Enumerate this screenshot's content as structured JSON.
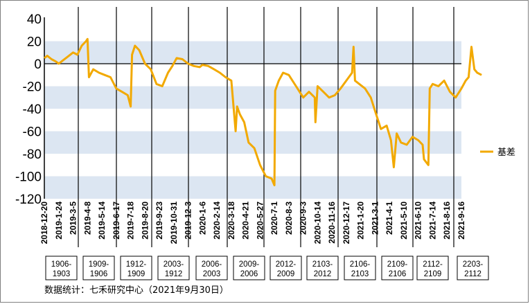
{
  "chart_data": {
    "type": "line",
    "title": "",
    "xlabel": "",
    "ylabel": "",
    "ylim": [
      -120,
      40
    ],
    "yticks": [
      "40",
      "20",
      "0",
      "-20",
      "-40",
      "-60",
      "-80",
      "-100",
      "-120"
    ],
    "grid_bands": true,
    "legend_position": "right",
    "x_tick_labels": [
      "2018-12-20",
      "2019-1-24",
      "2019-3-5",
      "2019-4-8",
      "2019-5-14",
      "2019-6-17",
      "2019-7-18",
      "2019-8-20",
      "2019-9-23",
      "2019-10-31",
      "2019-12-3",
      "2020-1-6",
      "2020-2-14",
      "2020-3-18",
      "2020-4-21",
      "2020-5-27",
      "2020-7-1",
      "2020-8-3",
      "2020-9-3",
      "2020-10-14",
      "2020-11-16",
      "2020-12-17",
      "2021-1-20",
      "2021-3-1",
      "2021-4-1",
      "2021-5-10",
      "2021-6-10",
      "2021-7-14",
      "2021-8-16",
      "2021-9-16"
    ],
    "contracts": [
      {
        "label": "1906-\n1903"
      },
      {
        "label": "1909-\n1906"
      },
      {
        "label": "1912-\n1909"
      },
      {
        "label": "2003-\n1912"
      },
      {
        "label": "2006-\n2003"
      },
      {
        "label": "2009-\n2006"
      },
      {
        "label": "2012-\n2009"
      },
      {
        "label": "2103-\n2012"
      },
      {
        "label": "2106-\n2103"
      },
      {
        "label": "2109-\n2106"
      },
      {
        "label": "2112-\n2109"
      },
      {
        "label": "2203-\n2112"
      }
    ],
    "series": [
      {
        "name": "基差",
        "color": "#f2a900",
        "x_index": [
          0,
          0.2,
          0.5,
          0.8,
          1,
          1.3,
          1.6,
          2,
          2.3,
          2.6,
          2.9,
          3,
          3.1,
          3.4,
          3.8,
          4.2,
          4.6,
          5,
          5.4,
          5.8,
          6,
          6.1,
          6.3,
          6.6,
          7,
          7.4,
          7.8,
          8.2,
          8.6,
          8.9,
          9.2,
          9.6,
          10,
          10.4,
          10.8,
          11,
          11.4,
          11.8,
          12.2,
          12.6,
          13,
          13.3,
          13.4,
          13.6,
          13.9,
          14.2,
          14.6,
          15,
          15.4,
          15.8,
          16,
          16.05,
          16.3,
          16.6,
          17,
          17.5,
          18,
          18.4,
          18.8,
          18.85,
          19,
          19.4,
          19.8,
          20.2,
          20.6,
          21,
          21.4,
          21.5,
          21.6,
          21.9,
          22.3,
          22.7,
          23,
          23.4,
          23.8,
          24.1,
          24.3,
          24.5,
          24.8,
          25.2,
          25.6,
          26,
          26.3,
          26.4,
          26.7,
          26.8,
          27,
          27.4,
          27.8,
          28.2,
          28.6,
          29,
          29.3,
          29.5,
          29.7,
          29.9,
          30.1,
          30.4
        ],
        "values": [
          5,
          7,
          4,
          2,
          0,
          3,
          6,
          10,
          8,
          16,
          20,
          22,
          -12,
          -5,
          -8,
          -10,
          -12,
          -22,
          -25,
          -28,
          -38,
          8,
          16,
          12,
          0,
          -5,
          -18,
          -20,
          -8,
          -2,
          5,
          4,
          0,
          -2,
          -3,
          -1,
          -2,
          -5,
          -8,
          -12,
          -15,
          -60,
          -38,
          -45,
          -52,
          -70,
          -75,
          -90,
          -100,
          -102,
          -108,
          -24,
          -15,
          -8,
          -10,
          -20,
          -30,
          -25,
          -30,
          -52,
          -20,
          -25,
          -30,
          -28,
          -22,
          -15,
          -8,
          15,
          -15,
          -18,
          -22,
          -30,
          -42,
          -58,
          -55,
          -68,
          -92,
          -62,
          -70,
          -72,
          -65,
          -68,
          -72,
          -85,
          -90,
          -22,
          -18,
          -20,
          -15,
          -25,
          -30,
          -22,
          -15,
          -12,
          15,
          -5,
          -8,
          -10
        ]
      }
    ]
  },
  "source": "数据统计：七禾研究中心（2021年9月30日）"
}
